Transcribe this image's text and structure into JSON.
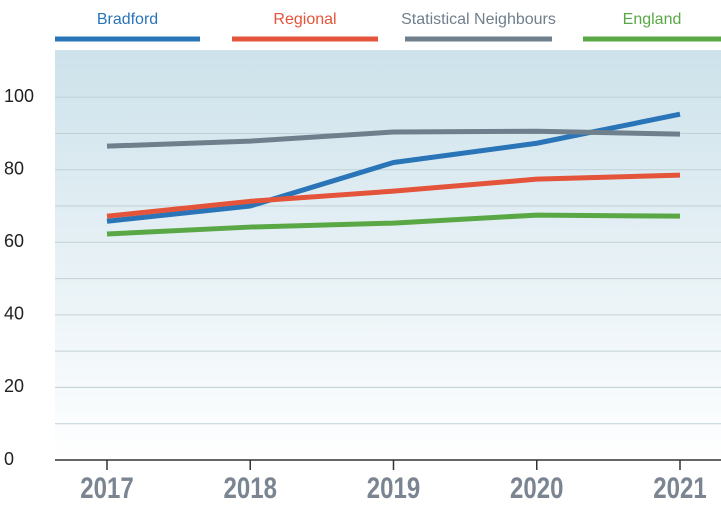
{
  "chart_data": {
    "type": "line",
    "categories": [
      "2017",
      "2018",
      "2019",
      "2020",
      "2021"
    ],
    "series": [
      {
        "name": "Bradford",
        "color": "#2a74b8",
        "values": [
          65.8,
          70,
          82,
          87.3,
          95.3
        ]
      },
      {
        "name": "Regional",
        "color": "#e4543a",
        "values": [
          67.2,
          71.3,
          74.1,
          77.4,
          78.5
        ]
      },
      {
        "name": "Statistical Neighbours",
        "color": "#6f7f8c",
        "values": [
          86.5,
          87.9,
          90.4,
          90.6,
          89.8
        ]
      },
      {
        "name": "England",
        "color": "#5aa845",
        "values": [
          62.3,
          64.2,
          65.3,
          67.5,
          67.2
        ]
      }
    ],
    "ylim": [
      0,
      113
    ],
    "yticks": [
      0,
      20,
      40,
      60,
      80,
      100
    ],
    "minor_yticks": [
      10,
      30,
      50,
      70,
      90
    ],
    "grid": true,
    "legend": "top"
  }
}
